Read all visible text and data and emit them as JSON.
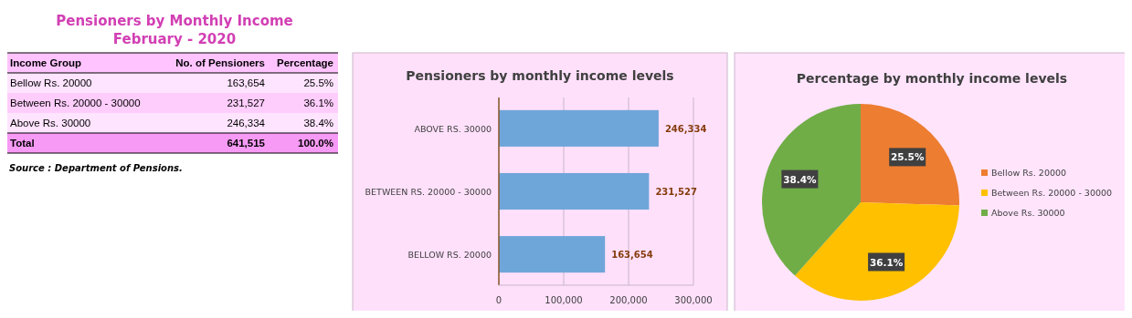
{
  "chart_data": [
    {
      "type": "other",
      "title": "Pensioners by Monthly Income",
      "subtitle": "February - 2020",
      "annotations": [
        "Income Group",
        "No. of Pensioners",
        "Percentage",
        "Bellow Rs. 20000",
        "163,654",
        "25.5%",
        "Between Rs. 20000 - 30000",
        "231,527",
        "36.1%",
        "Above Rs. 30000",
        "246,334",
        "38.4%",
        "Total",
        "641,515",
        "100.0%",
        "Source : Department of Pensions."
      ]
    },
    {
      "type": "bar",
      "orientation": "horizontal",
      "title": "Pensioners by monthly income levels",
      "categories": [
        "ABOVE RS. 30000",
        "BETWEEN RS. 20000 - 30000",
        "BELLOW RS. 20000"
      ],
      "values": [
        246334,
        231527,
        163654
      ],
      "value_labels": [
        "246,334",
        "231,527",
        "163,654"
      ],
      "color": "#6fa6d9",
      "xlim": [
        0,
        300000
      ],
      "xticks": [
        0,
        {
          "value": 100000,
          "label": "100,000"
        },
        {
          "value": 200000,
          "label": "200,000"
        },
        {
          "value": 300000,
          "label": "300,000"
        }
      ],
      "grid": "x"
    },
    {
      "type": "pie",
      "title": "Percentage by monthly income levels",
      "categories": [
        "Bellow Rs. 20000",
        "Between Rs. 20000 - 30000",
        "Above Rs. 30000"
      ],
      "values": [
        25.5,
        36.1,
        38.4
      ],
      "value_labels": [
        "25.5%",
        "36.1%",
        "38.4%"
      ],
      "colors": [
        "#ed7d31",
        "#ffc000",
        "#70ad47"
      ],
      "legend": "right"
    }
  ]
}
